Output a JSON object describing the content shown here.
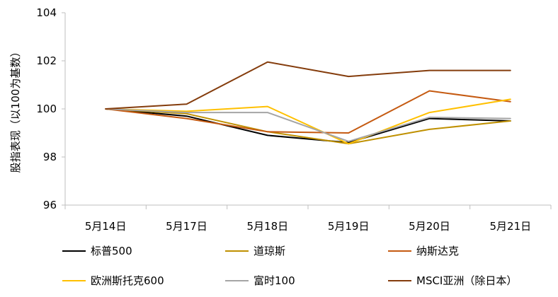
{
  "chart_data": {
    "type": "line",
    "ylabel": "股指表现（以100为基数）",
    "categories": [
      "5月14日",
      "5月17日",
      "5月18日",
      "5月19日",
      "5月20日",
      "5月21日"
    ],
    "y_ticks": [
      "96",
      "98",
      "100",
      "102",
      "104"
    ],
    "ylim": [
      96,
      104
    ],
    "grid": false,
    "legend_position": "bottom",
    "series": [
      {
        "name": "标普500",
        "color": "#000000",
        "values": [
          100,
          99.7,
          98.9,
          98.6,
          99.6,
          99.5
        ]
      },
      {
        "name": "道琼斯",
        "color": "#BF9000",
        "values": [
          100,
          99.8,
          99.05,
          98.55,
          99.15,
          99.5
        ]
      },
      {
        "name": "纳斯达克",
        "color": "#C55A11",
        "values": [
          100,
          99.6,
          99.05,
          99.0,
          100.75,
          100.3
        ]
      },
      {
        "name": "欧洲斯托克600",
        "color": "#FFC000",
        "values": [
          100,
          99.9,
          100.1,
          98.55,
          99.85,
          100.4
        ]
      },
      {
        "name": "富时100",
        "color": "#A5A5A5",
        "values": [
          100,
          99.85,
          99.85,
          98.65,
          99.65,
          99.6
        ]
      },
      {
        "name": "MSCI亚洲（除日本）",
        "color": "#843C0C",
        "values": [
          100,
          100.2,
          101.95,
          101.35,
          101.6,
          101.6
        ]
      }
    ]
  }
}
